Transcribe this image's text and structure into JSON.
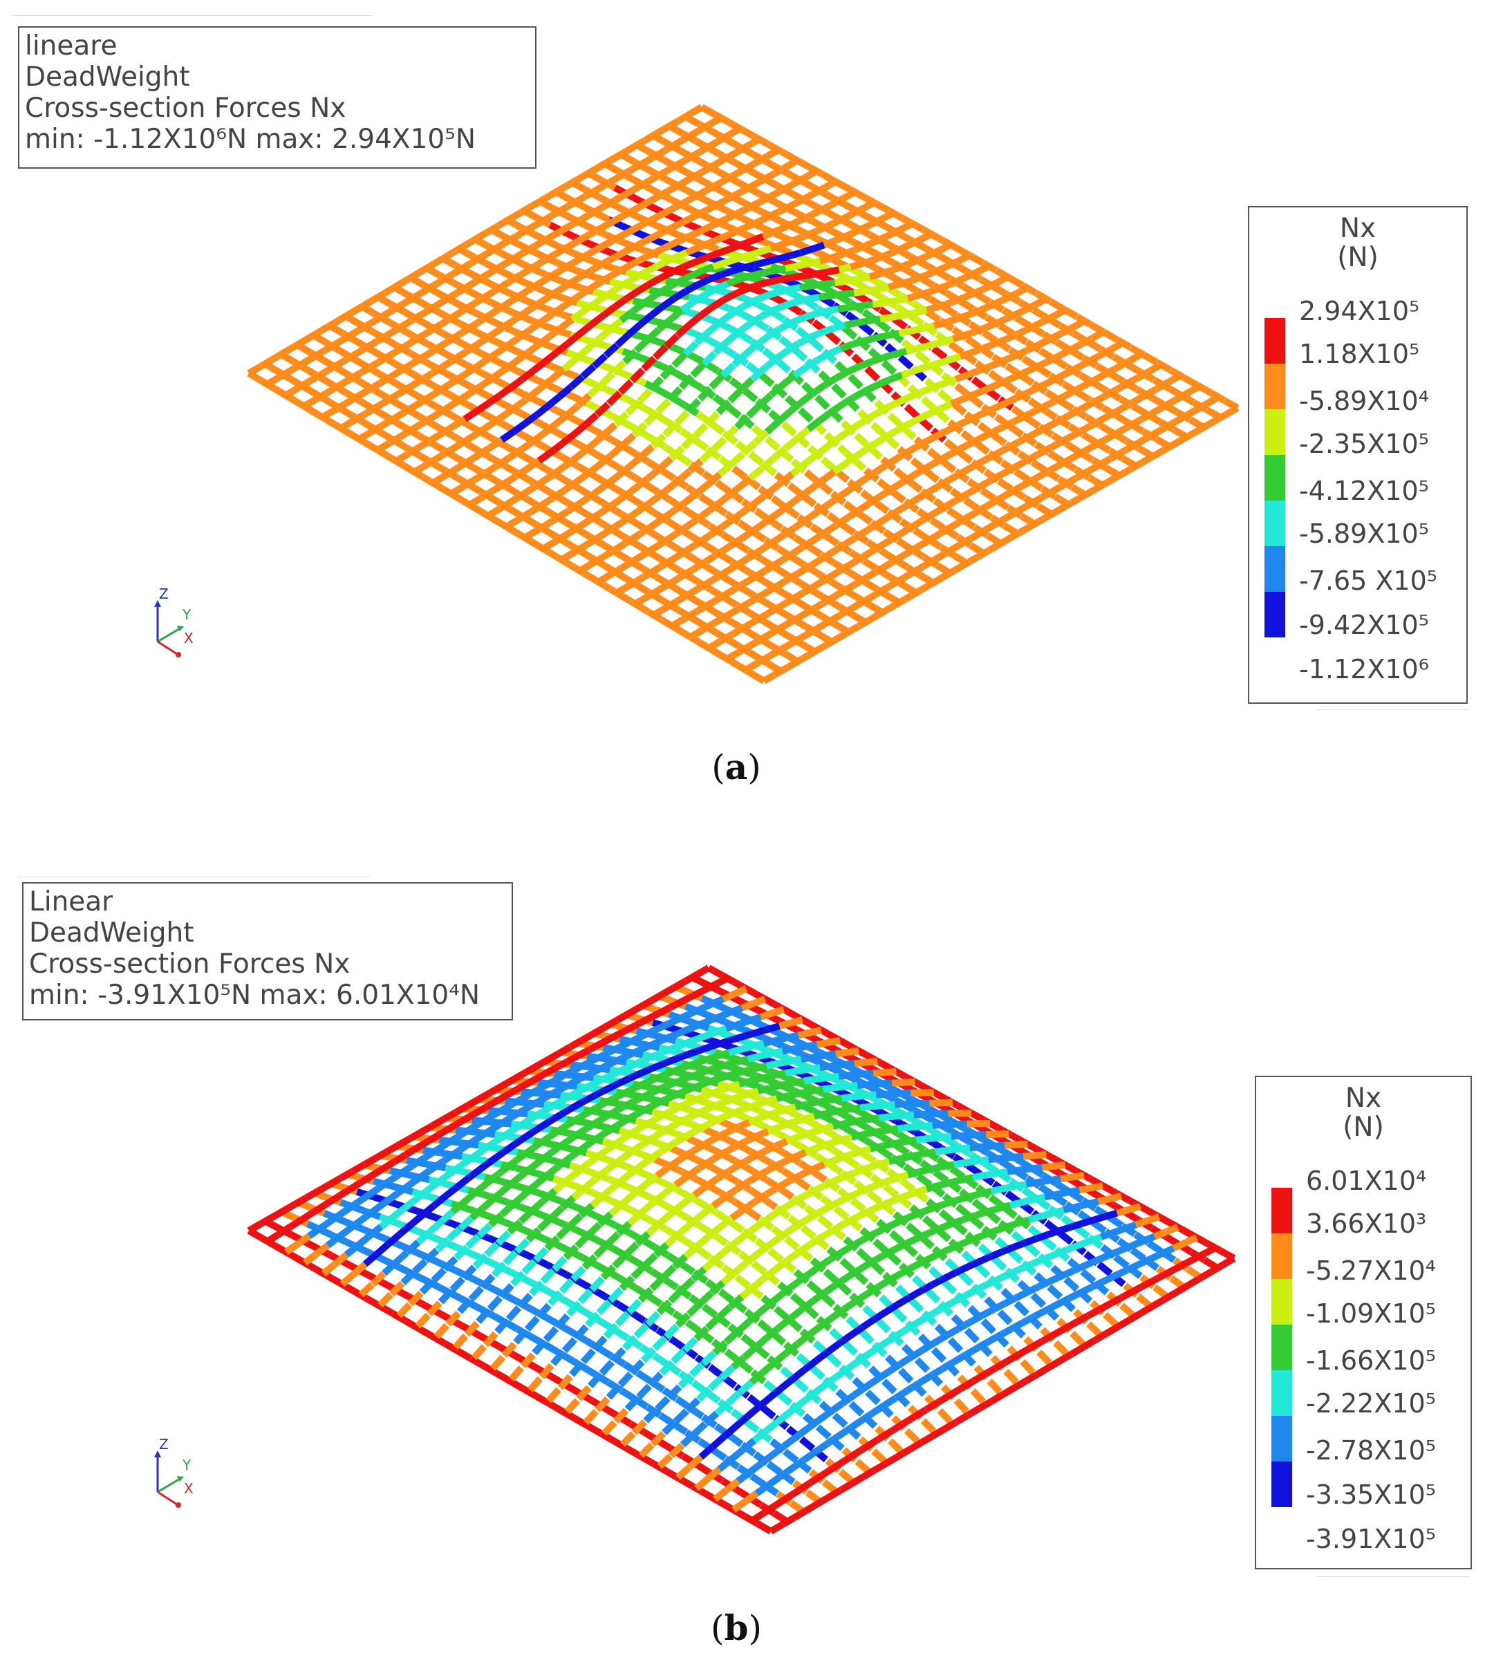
{
  "panels": [
    {
      "info": {
        "line1": "lineare",
        "line2": "DeadWeight",
        "line3": "Cross-section Forces Nx",
        "line4": "min: -1.12X10⁶N max: 2.94X10⁵N"
      },
      "legend": {
        "title1": "Nx",
        "title2": "(N)",
        "ticks": [
          "2.94X10⁵",
          "1.18X10⁵",
          "-5.89X10⁴",
          "-2.35X10⁵",
          "-4.12X10⁵",
          "-5.89X10⁵",
          "-7.65 X10⁵",
          "-9.42X10⁵",
          "-1.12X10⁶"
        ],
        "colors": [
          "#ee1111",
          "#ff8c1a",
          "#ccee11",
          "#33cc33",
          "#22e8d8",
          "#1e88ee",
          "#1111dd"
        ]
      },
      "caption_letter": "a"
    },
    {
      "info": {
        "line1": "Linear",
        "line2": "DeadWeight",
        "line3": "Cross-section Forces Nx",
        "line4": "min: -3.91X10⁵N max: 6.01X10⁴N"
      },
      "legend": {
        "title1": "Nx",
        "title2": "(N)",
        "ticks": [
          "6.01X10⁴",
          "3.66X10³",
          "-5.27X10⁴",
          "-1.09X10⁵",
          "-1.66X10⁵",
          "-2.22X10⁵",
          "-2.78X10⁵",
          "-3.35X10⁵",
          "-3.91X10⁵"
        ],
        "colors": [
          "#ee1111",
          "#ff8c1a",
          "#ccee11",
          "#33cc33",
          "#22e8d8",
          "#1e88ee",
          "#1111dd"
        ]
      },
      "caption_letter": "b"
    }
  ],
  "axis_labels": {
    "z": "Z",
    "y": "Y",
    "x": "X"
  },
  "colors": {
    "red": "#ee1111",
    "orange": "#ff8c1a",
    "yellow": "#ccee11",
    "green": "#33cc33",
    "cyan": "#22e8d8",
    "lightblue": "#1e88ee",
    "blue": "#1111dd"
  }
}
